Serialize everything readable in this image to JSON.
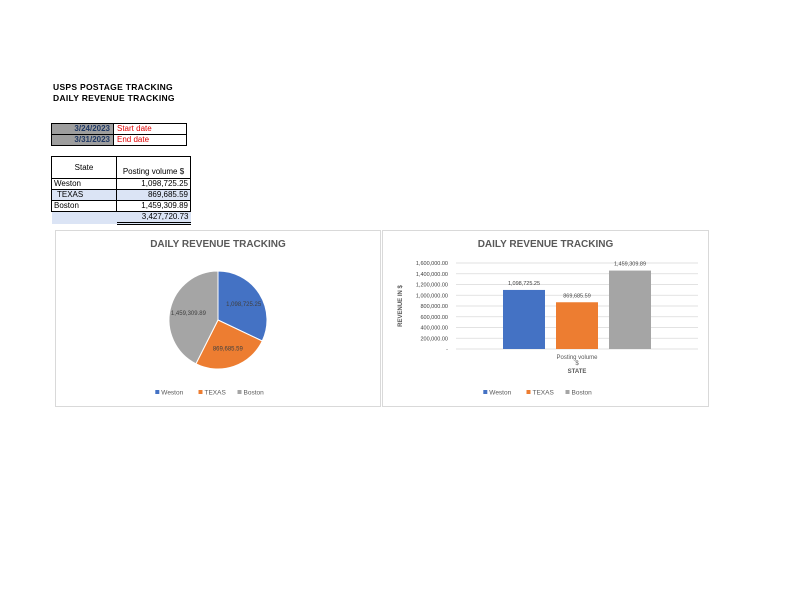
{
  "header": {
    "line1": "USPS POSTAGE TRACKING",
    "line2": "DAILY REVENUE TRACKING"
  },
  "dates": {
    "start_value": "3/24/2023",
    "start_label": "Start date",
    "end_value": "3/31/2023",
    "end_label": "End date"
  },
  "volume_table": {
    "col_state": "State",
    "col_volume": "Posting volume $",
    "rows": [
      {
        "state": "Weston",
        "volume": "1,098,725.25"
      },
      {
        "state": "TEXAS",
        "volume": "869,685.59"
      },
      {
        "state": "Boston",
        "volume": "1,459,309.89"
      }
    ],
    "total": "3,427,720.73"
  },
  "colors": {
    "Weston": "#4472c4",
    "TEXAS": "#ed7d31",
    "Boston": "#a5a5a5"
  },
  "chart_data": [
    {
      "type": "pie",
      "title": "DAILY REVENUE TRACKING",
      "categories": [
        "Weston",
        "TEXAS",
        "Boston"
      ],
      "values": [
        1098725.25,
        869685.59,
        1459309.89
      ],
      "data_labels": [
        "1,098,725.25",
        "869,685.59",
        "1,459,309.89"
      ],
      "legend": "bottom"
    },
    {
      "type": "bar",
      "title": "DAILY REVENUE TRACKING",
      "categories": [
        "Posting volume $"
      ],
      "series": [
        {
          "name": "Weston",
          "values": [
            1098725.25
          ],
          "label": "1,098,725.25"
        },
        {
          "name": "TEXAS",
          "values": [
            869685.59
          ],
          "label": "869,685.59"
        },
        {
          "name": "Boston",
          "values": [
            1459309.89
          ],
          "label": "1,459,309.89"
        }
      ],
      "xlabel": "STATE",
      "ylabel": "REVENUE IN $",
      "ylim": [
        0,
        1600000
      ],
      "yticks": [
        0,
        200000,
        400000,
        600000,
        800000,
        1000000,
        1200000,
        1400000,
        1600000
      ],
      "ytick_labels": [
        "-",
        "200,000.00",
        "400,000.00",
        "600,000.00",
        "800,000.00",
        "1,000,000.00",
        "1,200,000.00",
        "1,400,000.00",
        "1,600,000.00"
      ],
      "grid": true,
      "legend": "bottom"
    }
  ]
}
